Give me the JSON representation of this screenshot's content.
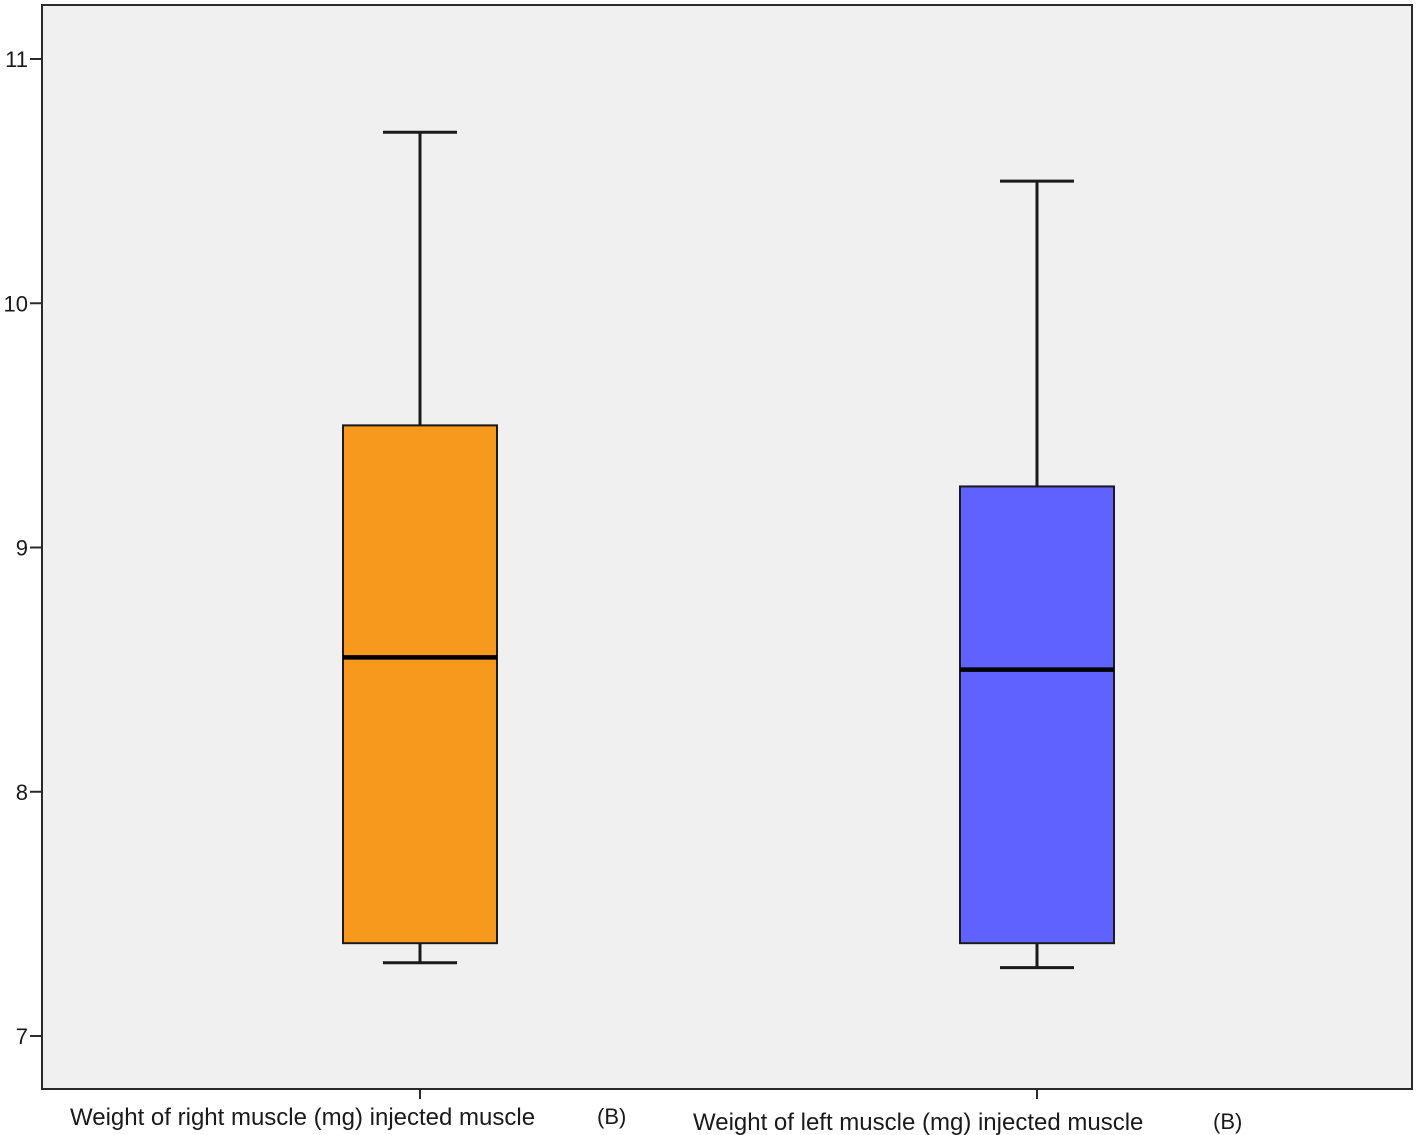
{
  "chart_data": {
    "type": "box",
    "title": "",
    "xlabel": "",
    "ylabel": "",
    "ylim": [
      6.9,
      11.2
    ],
    "yticks": [
      7,
      8,
      9,
      10,
      11
    ],
    "grid": false,
    "background_color": "#f0f0f0",
    "categories": [
      "Weight of right muscle (mg) injected muscle",
      "Weight of left muscle (mg) injected muscle"
    ],
    "category_suffixes": [
      "(B)",
      "(B)"
    ],
    "boxes": [
      {
        "category": "Weight of right muscle (mg) injected muscle",
        "min": 7.3,
        "q1": 7.38,
        "median": 8.55,
        "q3": 9.5,
        "max": 10.7,
        "color": "#f7991c"
      },
      {
        "category": "Weight of left muscle (mg) injected muscle",
        "min": 7.28,
        "q1": 7.38,
        "median": 8.5,
        "q3": 9.25,
        "max": 10.5,
        "color": "#5f62ff"
      }
    ]
  }
}
